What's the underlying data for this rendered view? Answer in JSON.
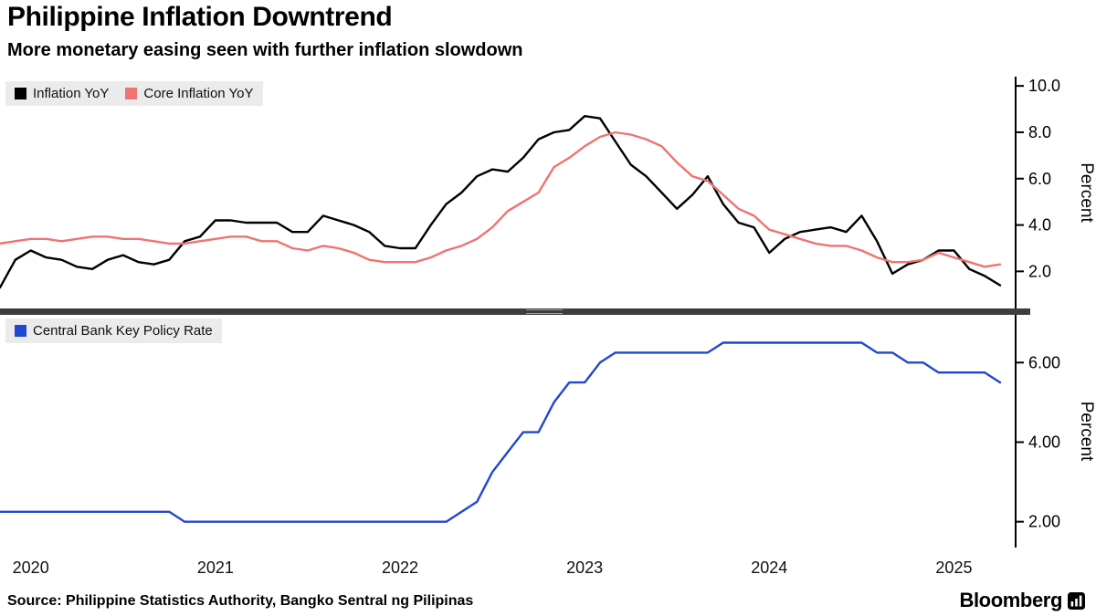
{
  "header": {
    "title": "Philippine Inflation Downtrend",
    "subtitle": "More monetary easing seen with further inflation slowdown"
  },
  "footer": {
    "source": "Source: Philippine Statistics Authority, Bangko Sentral ng Pilipinas",
    "brand": "Bloomberg"
  },
  "chart_data": {
    "type": "line",
    "title": "Philippine Inflation Downtrend",
    "subtitle": "More monetary easing seen with further inflation slowdown",
    "x": [
      "2019-11",
      "2019-12",
      "2020-01",
      "2020-02",
      "2020-03",
      "2020-04",
      "2020-05",
      "2020-06",
      "2020-07",
      "2020-08",
      "2020-09",
      "2020-10",
      "2020-11",
      "2020-12",
      "2021-01",
      "2021-02",
      "2021-03",
      "2021-04",
      "2021-05",
      "2021-06",
      "2021-07",
      "2021-08",
      "2021-09",
      "2021-10",
      "2021-11",
      "2021-12",
      "2022-01",
      "2022-02",
      "2022-03",
      "2022-04",
      "2022-05",
      "2022-06",
      "2022-07",
      "2022-08",
      "2022-09",
      "2022-10",
      "2022-11",
      "2022-12",
      "2023-01",
      "2023-02",
      "2023-03",
      "2023-04",
      "2023-05",
      "2023-06",
      "2023-07",
      "2023-08",
      "2023-09",
      "2023-10",
      "2023-11",
      "2023-12",
      "2024-01",
      "2024-02",
      "2024-03",
      "2024-04",
      "2024-05",
      "2024-06",
      "2024-07",
      "2024-08",
      "2024-09",
      "2024-10",
      "2024-11",
      "2024-12",
      "2025-01",
      "2025-02",
      "2025-03",
      "2025-04"
    ],
    "x_ticks": {
      "labels": [
        "2020",
        "2021",
        "2022",
        "2023",
        "2024",
        "2025"
      ],
      "month_indices": [
        2,
        14,
        26,
        38,
        50,
        62
      ]
    },
    "panels": [
      {
        "name": "inflation-panel",
        "ylabel": "Percent",
        "ylim": [
          0.4,
          10.4
        ],
        "yticks": [
          {
            "value": 10,
            "label": "10.0"
          },
          {
            "value": 8,
            "label": "8.0"
          },
          {
            "value": 6,
            "label": "6.0"
          },
          {
            "value": 4,
            "label": "4.0"
          },
          {
            "value": 2,
            "label": "2.0"
          }
        ],
        "series": [
          {
            "name": "Inflation YoY",
            "color": "#000000",
            "values": [
              1.3,
              2.5,
              2.9,
              2.6,
              2.5,
              2.2,
              2.1,
              2.5,
              2.7,
              2.4,
              2.3,
              2.5,
              3.3,
              3.5,
              4.2,
              4.2,
              4.1,
              4.1,
              4.1,
              3.7,
              3.7,
              4.4,
              4.2,
              4.0,
              3.7,
              3.1,
              3.0,
              3.0,
              4.0,
              4.9,
              5.4,
              6.1,
              6.4,
              6.3,
              6.9,
              7.7,
              8.0,
              8.1,
              8.7,
              8.6,
              7.6,
              6.6,
              6.1,
              5.4,
              4.7,
              5.3,
              6.1,
              4.9,
              4.1,
              3.9,
              2.8,
              3.4,
              3.7,
              3.8,
              3.9,
              3.7,
              4.4,
              3.3,
              1.9,
              2.3,
              2.5,
              2.9,
              2.9,
              2.1,
              1.8,
              1.4
            ]
          },
          {
            "name": "Core Inflation YoY",
            "color": "#ef7370",
            "values": [
              3.2,
              3.3,
              3.4,
              3.4,
              3.3,
              3.4,
              3.5,
              3.5,
              3.4,
              3.4,
              3.3,
              3.2,
              3.2,
              3.3,
              3.4,
              3.5,
              3.5,
              3.3,
              3.3,
              3.0,
              2.9,
              3.1,
              3.0,
              2.8,
              2.5,
              2.4,
              2.4,
              2.4,
              2.6,
              2.9,
              3.1,
              3.4,
              3.9,
              4.6,
              5.0,
              5.4,
              6.5,
              6.9,
              7.4,
              7.8,
              8.0,
              7.9,
              7.7,
              7.4,
              6.7,
              6.1,
              5.9,
              5.3,
              4.7,
              4.4,
              3.8,
              3.6,
              3.4,
              3.2,
              3.1,
              3.1,
              2.9,
              2.6,
              2.4,
              2.4,
              2.5,
              2.8,
              2.6,
              2.4,
              2.2,
              2.3
            ]
          }
        ]
      },
      {
        "name": "policy-panel",
        "ylabel": "Percent",
        "ylim": [
          1.35,
          7.2
        ],
        "yticks": [
          {
            "value": 6,
            "label": "6.00"
          },
          {
            "value": 4,
            "label": "4.00"
          },
          {
            "value": 2,
            "label": "2.00"
          }
        ],
        "series": [
          {
            "name": "Central Bank Key Policy Rate",
            "color": "#2048d0",
            "values": [
              2.25,
              2.25,
              2.25,
              2.25,
              2.25,
              2.25,
              2.25,
              2.25,
              2.25,
              2.25,
              2.25,
              2.25,
              2.0,
              2.0,
              2.0,
              2.0,
              2.0,
              2.0,
              2.0,
              2.0,
              2.0,
              2.0,
              2.0,
              2.0,
              2.0,
              2.0,
              2.0,
              2.0,
              2.0,
              2.0,
              2.25,
              2.5,
              3.25,
              3.75,
              4.25,
              4.25,
              5.0,
              5.5,
              5.5,
              6.0,
              6.25,
              6.25,
              6.25,
              6.25,
              6.25,
              6.25,
              6.25,
              6.5,
              6.5,
              6.5,
              6.5,
              6.5,
              6.5,
              6.5,
              6.5,
              6.5,
              6.5,
              6.25,
              6.25,
              6.0,
              6.0,
              5.75,
              5.75,
              5.75,
              5.75,
              5.5
            ]
          }
        ]
      }
    ],
    "legend_position": "top-left-of-each-panel",
    "grid": "off"
  }
}
